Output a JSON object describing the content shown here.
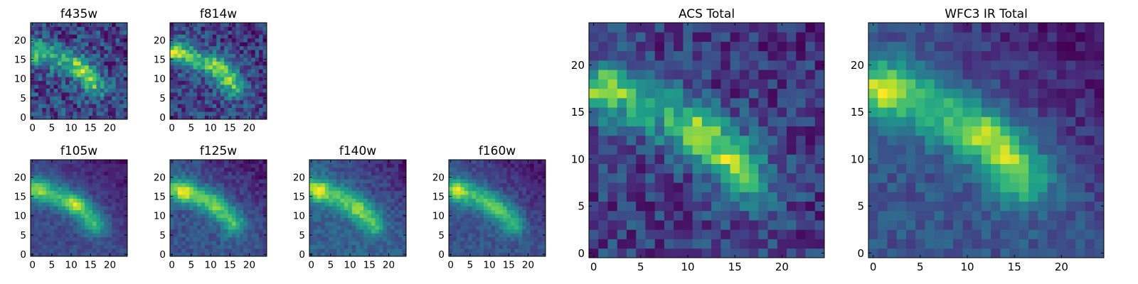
{
  "chart_data": [
    {
      "type": "heatmap",
      "title": "f435w",
      "x_ticks": [
        0,
        5,
        10,
        15,
        20
      ],
      "y_ticks": [
        0,
        5,
        10,
        15,
        20
      ],
      "xlim": [
        0,
        25
      ],
      "ylim": [
        0,
        25
      ],
      "grid": false,
      "colormap": "viridis",
      "feature": {
        "ridge": [
          [
            0,
            17
          ],
          [
            2,
            17
          ],
          [
            5,
            15.5
          ],
          [
            8,
            14.5
          ],
          [
            11,
            13.5
          ],
          [
            13,
            12
          ],
          [
            15,
            9.5
          ],
          [
            16,
            8
          ]
        ],
        "hot_spots": [
          [
            1,
            17,
            0.6
          ],
          [
            12,
            13.5,
            0.7
          ],
          [
            14.5,
            10,
            0.6
          ]
        ],
        "noise": 0.55,
        "falloff_upper_right": 0.05,
        "seed": 11
      }
    },
    {
      "type": "heatmap",
      "title": "f814w",
      "x_ticks": [
        0,
        5,
        10,
        15,
        20
      ],
      "y_ticks": [
        0,
        5,
        10,
        15,
        20
      ],
      "xlim": [
        0,
        25
      ],
      "ylim": [
        0,
        25
      ],
      "grid": false,
      "colormap": "viridis",
      "feature": {
        "ridge": [
          [
            0,
            17
          ],
          [
            2,
            17
          ],
          [
            5,
            15.5
          ],
          [
            8,
            14.5
          ],
          [
            11,
            13.5
          ],
          [
            13,
            12
          ],
          [
            15,
            9.5
          ],
          [
            16,
            8
          ]
        ],
        "hot_spots": [
          [
            1,
            17,
            0.6
          ],
          [
            12,
            13,
            0.5
          ],
          [
            14.5,
            10,
            0.4
          ]
        ],
        "noise": 0.4,
        "falloff_upper_right": 0.1,
        "seed": 23
      }
    },
    {
      "type": "heatmap",
      "title": "f105w",
      "x_ticks": [
        0,
        5,
        10,
        15,
        20
      ],
      "y_ticks": [
        0,
        5,
        10,
        15,
        20
      ],
      "xlim": [
        0,
        25
      ],
      "ylim": [
        0,
        25
      ],
      "grid": false,
      "colormap": "viridis",
      "feature": {
        "ridge": [
          [
            0,
            17
          ],
          [
            2,
            16.5
          ],
          [
            5,
            15.5
          ],
          [
            8,
            14.5
          ],
          [
            11,
            13
          ],
          [
            13,
            11.5
          ],
          [
            15,
            9.5
          ],
          [
            16,
            8
          ]
        ],
        "hot_spots": [
          [
            2,
            17,
            0.5
          ],
          [
            11,
            13,
            0.6
          ]
        ],
        "noise": 0.15,
        "falloff_upper_right": 0.35,
        "seed": 37
      }
    },
    {
      "type": "heatmap",
      "title": "f125w",
      "x_ticks": [
        0,
        5,
        10,
        15,
        20
      ],
      "y_ticks": [
        0,
        5,
        10,
        15,
        20
      ],
      "xlim": [
        0,
        25
      ],
      "ylim": [
        0,
        25
      ],
      "grid": false,
      "colormap": "viridis",
      "feature": {
        "ridge": [
          [
            0,
            17
          ],
          [
            2,
            16.5
          ],
          [
            5,
            15.5
          ],
          [
            8,
            14.5
          ],
          [
            11,
            13
          ],
          [
            13,
            11.5
          ],
          [
            15,
            9.5
          ],
          [
            16,
            8
          ]
        ],
        "hot_spots": [
          [
            3,
            16.5,
            0.7
          ],
          [
            11,
            12.5,
            0.3
          ]
        ],
        "noise": 0.2,
        "falloff_upper_right": 0.4,
        "seed": 41
      }
    },
    {
      "type": "heatmap",
      "title": "f140w",
      "x_ticks": [
        0,
        5,
        10,
        15,
        20
      ],
      "y_ticks": [
        0,
        5,
        10,
        15,
        20
      ],
      "xlim": [
        0,
        25
      ],
      "ylim": [
        0,
        25
      ],
      "grid": false,
      "colormap": "viridis",
      "feature": {
        "ridge": [
          [
            0,
            17
          ],
          [
            2,
            16.5
          ],
          [
            5,
            15.5
          ],
          [
            8,
            14.5
          ],
          [
            11,
            13
          ],
          [
            13,
            11.5
          ],
          [
            15,
            9.5
          ],
          [
            16,
            8
          ]
        ],
        "hot_spots": [
          [
            2,
            16.5,
            0.7
          ],
          [
            12,
            11,
            0.3
          ]
        ],
        "noise": 0.2,
        "falloff_upper_right": 0.45,
        "seed": 53
      }
    },
    {
      "type": "heatmap",
      "title": "f160w",
      "x_ticks": [
        0,
        5,
        10,
        15,
        20
      ],
      "y_ticks": [
        0,
        5,
        10,
        15,
        20
      ],
      "xlim": [
        0,
        25
      ],
      "ylim": [
        0,
        25
      ],
      "grid": false,
      "colormap": "viridis",
      "feature": {
        "ridge": [
          [
            0,
            17
          ],
          [
            2,
            16.5
          ],
          [
            5,
            15.5
          ],
          [
            8,
            14.5
          ],
          [
            11,
            13
          ],
          [
            13,
            11.5
          ],
          [
            15,
            9.5
          ],
          [
            16,
            8
          ]
        ],
        "hot_spots": [
          [
            2,
            16.5,
            0.7
          ],
          [
            11,
            12,
            0.3
          ]
        ],
        "noise": 0.18,
        "falloff_upper_right": 0.45,
        "seed": 67
      }
    },
    {
      "type": "heatmap",
      "title": "ACS Total",
      "x_ticks": [
        0,
        5,
        10,
        15,
        20
      ],
      "y_ticks": [
        0,
        5,
        10,
        15,
        20
      ],
      "xlim": [
        0,
        25
      ],
      "ylim": [
        0,
        25
      ],
      "grid": false,
      "colormap": "viridis",
      "feature": {
        "ridge": [
          [
            0,
            17.5
          ],
          [
            3,
            17
          ],
          [
            6,
            15.5
          ],
          [
            9,
            14
          ],
          [
            11,
            13
          ],
          [
            13,
            11.5
          ],
          [
            15,
            9.5
          ],
          [
            16,
            8
          ]
        ],
        "hot_spots": [
          [
            1.5,
            17.5,
            0.7
          ],
          [
            11.5,
            13,
            0.8
          ],
          [
            14.5,
            10,
            0.7
          ]
        ],
        "noise": 0.4,
        "falloff_upper_right": 0.1,
        "seed": 79
      }
    },
    {
      "type": "heatmap",
      "title": "WFC3 IR Total",
      "x_ticks": [
        0,
        5,
        10,
        15,
        20
      ],
      "y_ticks": [
        0,
        5,
        10,
        15,
        20
      ],
      "xlim": [
        0,
        25
      ],
      "ylim": [
        0,
        25
      ],
      "grid": false,
      "colormap": "viridis",
      "feature": {
        "ridge": [
          [
            0,
            17.5
          ],
          [
            3,
            17
          ],
          [
            6,
            15.5
          ],
          [
            9,
            14
          ],
          [
            11,
            13
          ],
          [
            13,
            11.5
          ],
          [
            15,
            9.5
          ],
          [
            16,
            8
          ]
        ],
        "hot_spots": [
          [
            1.5,
            17.5,
            0.7
          ],
          [
            12,
            12.5,
            0.55
          ],
          [
            14.5,
            9.5,
            0.45
          ]
        ],
        "noise": 0.22,
        "falloff_upper_right": 0.45,
        "seed": 97
      }
    }
  ]
}
